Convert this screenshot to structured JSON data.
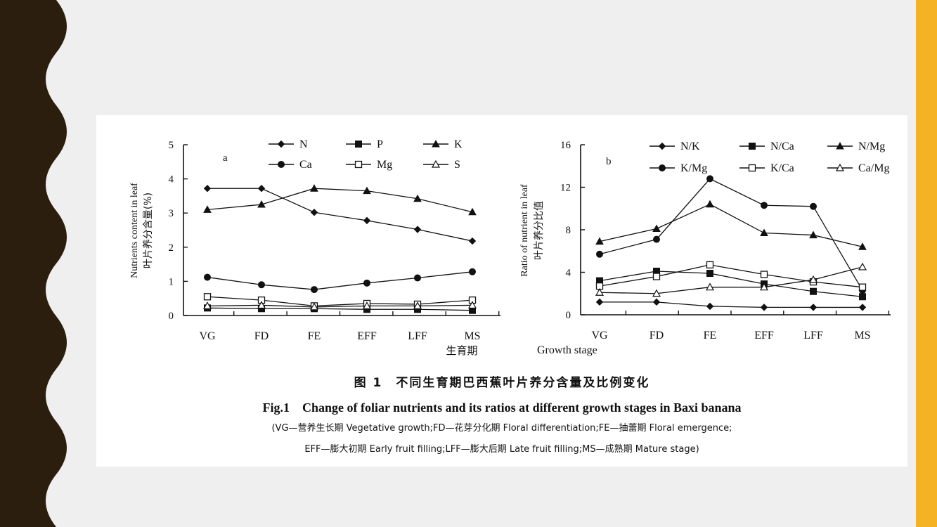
{
  "colors": {
    "background": "#efefef",
    "left_decor": "#2b1e0e",
    "right_bar": "#f5b324",
    "panel": "#ffffff",
    "ink": "#111111"
  },
  "caption": {
    "cn": "图 1　不同生育期巴西蕉叶片养分含量及比例变化",
    "en": "Fig.1　Change of foliar nutrients and its ratios at different growth stages in Baxi banana",
    "note1": "(VG—营养生长期 Vegetative growth;FD—花芽分化期 Floral differentiation;FE—抽蕾期 Floral emergence;",
    "note2": "EFF—膨大初期 Early fruit filling;LFF—膨大后期 Late fruit filling;MS—成熟期 Mature stage)"
  },
  "chart_data": [
    {
      "type": "line",
      "panel_label": "a",
      "ylabel_en": "Nutrients content in leaf",
      "ylabel_cn": "叶片养分含量(%)",
      "xlabel": "生育期",
      "categories": [
        "VG",
        "FD",
        "FE",
        "EFF",
        "LFF",
        "MS"
      ],
      "ylim": [
        0,
        5
      ],
      "yticks": [
        "0",
        "1",
        "2",
        "3",
        "4",
        "5"
      ],
      "legend_position": "top",
      "series": [
        {
          "name": "N",
          "marker": "diamond",
          "values": [
            3.72,
            3.72,
            3.02,
            2.78,
            2.52,
            2.18
          ]
        },
        {
          "name": "P",
          "marker": "square-filled",
          "values": [
            0.22,
            0.2,
            0.2,
            0.18,
            0.18,
            0.15
          ]
        },
        {
          "name": "K",
          "marker": "triangle-filled",
          "values": [
            3.1,
            3.25,
            3.72,
            3.65,
            3.42,
            3.03
          ]
        },
        {
          "name": "Ca",
          "marker": "circle-filled",
          "values": [
            1.12,
            0.9,
            0.76,
            0.95,
            1.1,
            1.28
          ]
        },
        {
          "name": "Mg",
          "marker": "square-open",
          "values": [
            0.55,
            0.45,
            0.28,
            0.35,
            0.33,
            0.45
          ]
        },
        {
          "name": "S",
          "marker": "triangle-open",
          "values": [
            0.28,
            0.3,
            0.25,
            0.28,
            0.28,
            0.3
          ]
        }
      ]
    },
    {
      "type": "line",
      "panel_label": "b",
      "ylabel_en": "Ratio of nutrient in leaf",
      "ylabel_cn": "叶片养分比值",
      "xlabel": "Growth stage",
      "categories": [
        "VG",
        "FD",
        "FE",
        "EFF",
        "LFF",
        "MS"
      ],
      "ylim": [
        0,
        16
      ],
      "yticks": [
        "0",
        "4",
        "8",
        "12",
        "16"
      ],
      "legend_position": "top",
      "series": [
        {
          "name": "N/K",
          "marker": "diamond",
          "values": [
            1.2,
            1.2,
            0.8,
            0.7,
            0.7,
            0.7
          ]
        },
        {
          "name": "N/Ca",
          "marker": "square-filled",
          "values": [
            3.2,
            4.1,
            3.9,
            2.9,
            2.2,
            1.7
          ]
        },
        {
          "name": "N/Mg",
          "marker": "triangle-filled",
          "values": [
            6.9,
            8.1,
            10.4,
            7.7,
            7.5,
            6.4
          ]
        },
        {
          "name": "K/Mg",
          "marker": "circle-filled",
          "values": [
            5.7,
            7.1,
            12.8,
            10.3,
            10.2,
            2.3
          ]
        },
        {
          "name": "K/Ca",
          "marker": "square-open",
          "values": [
            2.7,
            3.6,
            4.7,
            3.8,
            3.1,
            2.6
          ]
        },
        {
          "name": "Ca/Mg",
          "marker": "triangle-open",
          "values": [
            2.1,
            2.0,
            2.6,
            2.6,
            3.3,
            4.5
          ]
        }
      ]
    }
  ]
}
